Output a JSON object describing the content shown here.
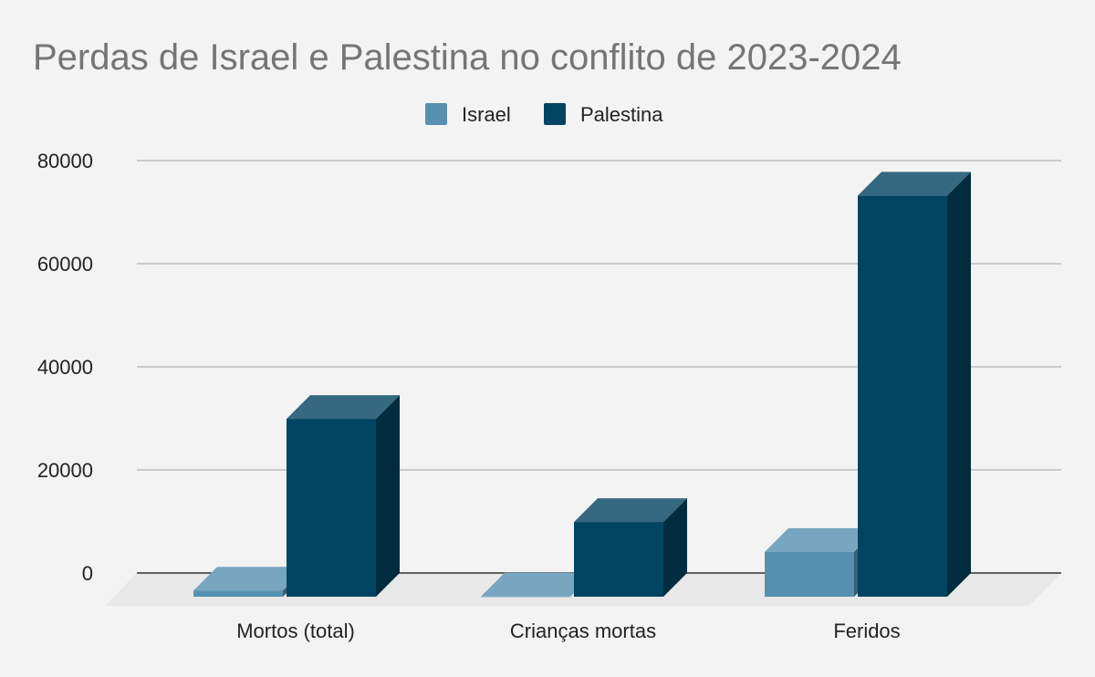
{
  "chart_data": {
    "type": "bar",
    "title": "Perdas de Israel e Palestina no conflito de 2023-2024",
    "categories": [
      "Mortos (total)",
      "Crianças mortas",
      "Feridos"
    ],
    "series": [
      {
        "name": "Israel",
        "values": [
          1200,
          35,
          8700
        ]
      },
      {
        "name": "Palestina",
        "values": [
          34500,
          14500,
          77800
        ]
      }
    ],
    "yticks": [
      "0",
      "20000",
      "40000",
      "60000",
      "80000"
    ],
    "ylim": [
      0,
      80000
    ],
    "grid": true,
    "legend_position": "top-center",
    "colors": {
      "Israel": "#5690b0",
      "Palestina": "#014461",
      "background": "#f3f3f3",
      "gridline": "#bdbdbd",
      "floor": "#e8e8e8"
    }
  }
}
